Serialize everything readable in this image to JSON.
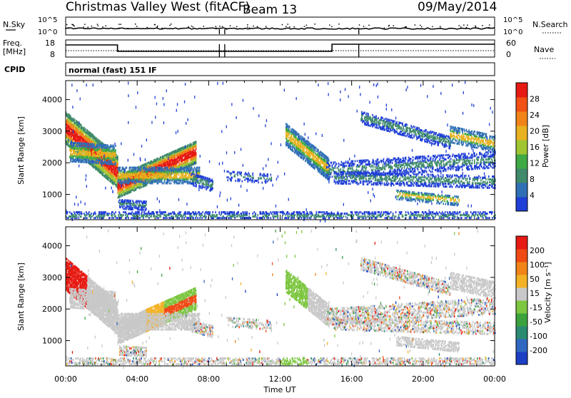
{
  "header": {
    "title": "Christmas Valley West (fitACF)",
    "beam": "Beam 13",
    "date": "09/May/2014"
  },
  "strip1": {
    "left_label": "N.Sky",
    "right_label": "N.Search",
    "tick_top": "10^5",
    "tick_bottom": "10^0"
  },
  "strip2": {
    "left_label_1": "Freq.",
    "left_label_2": "[MHz]",
    "right_label": "Nave",
    "left_ticks": [
      "18",
      "8"
    ],
    "right_ticks": [
      "60",
      "0"
    ]
  },
  "strip3": {
    "left_label": "CPID",
    "mode": "normal (fast) 151 IF"
  },
  "time_axis": {
    "label": "Time UT",
    "ticks": [
      "00:00",
      "04:00",
      "08:00",
      "12:00",
      "16:00",
      "20:00",
      "00:00"
    ]
  },
  "colors": {
    "power": [
      "#1f3fd6",
      "#2f6fb5",
      "#3e8a6a",
      "#3fa945",
      "#9fc531",
      "#e7b11f",
      "#f08418",
      "#f05014",
      "#e61a12"
    ],
    "velocity": [
      "#1c3fc4",
      "#2f67c1",
      "#2a8a72",
      "#3ca23c",
      "#7cc640",
      "#c8c8c8",
      "#f3b226",
      "#f08418",
      "#f04a14",
      "#e61a12"
    ]
  },
  "chart_data": [
    {
      "type": "heatmap",
      "name_key": "power",
      "ylabel": "Slant Range [km]",
      "xlabel": "Time UT",
      "yticks": [
        1000,
        2000,
        3000,
        4000
      ],
      "ylim": [
        200,
        4600
      ],
      "xlim_hours": [
        0,
        24
      ],
      "colorbar": {
        "label": "Power [dB]",
        "ticks": [
          "28",
          "24",
          "20",
          "16",
          "12",
          "8",
          "4"
        ]
      }
    },
    {
      "type": "heatmap",
      "name_key": "velocity",
      "ylabel": "Slant Range [km]",
      "xlabel": "Time UT",
      "yticks": [
        1000,
        2000,
        3000,
        4000
      ],
      "ylim": [
        200,
        4600
      ],
      "xlim_hours": [
        0,
        24
      ],
      "colorbar": {
        "label": "Velocity [m s⁻¹]",
        "ticks": [
          "200",
          "100",
          "50",
          "15",
          "-15",
          "-50",
          "-100",
          "-200"
        ]
      }
    }
  ]
}
